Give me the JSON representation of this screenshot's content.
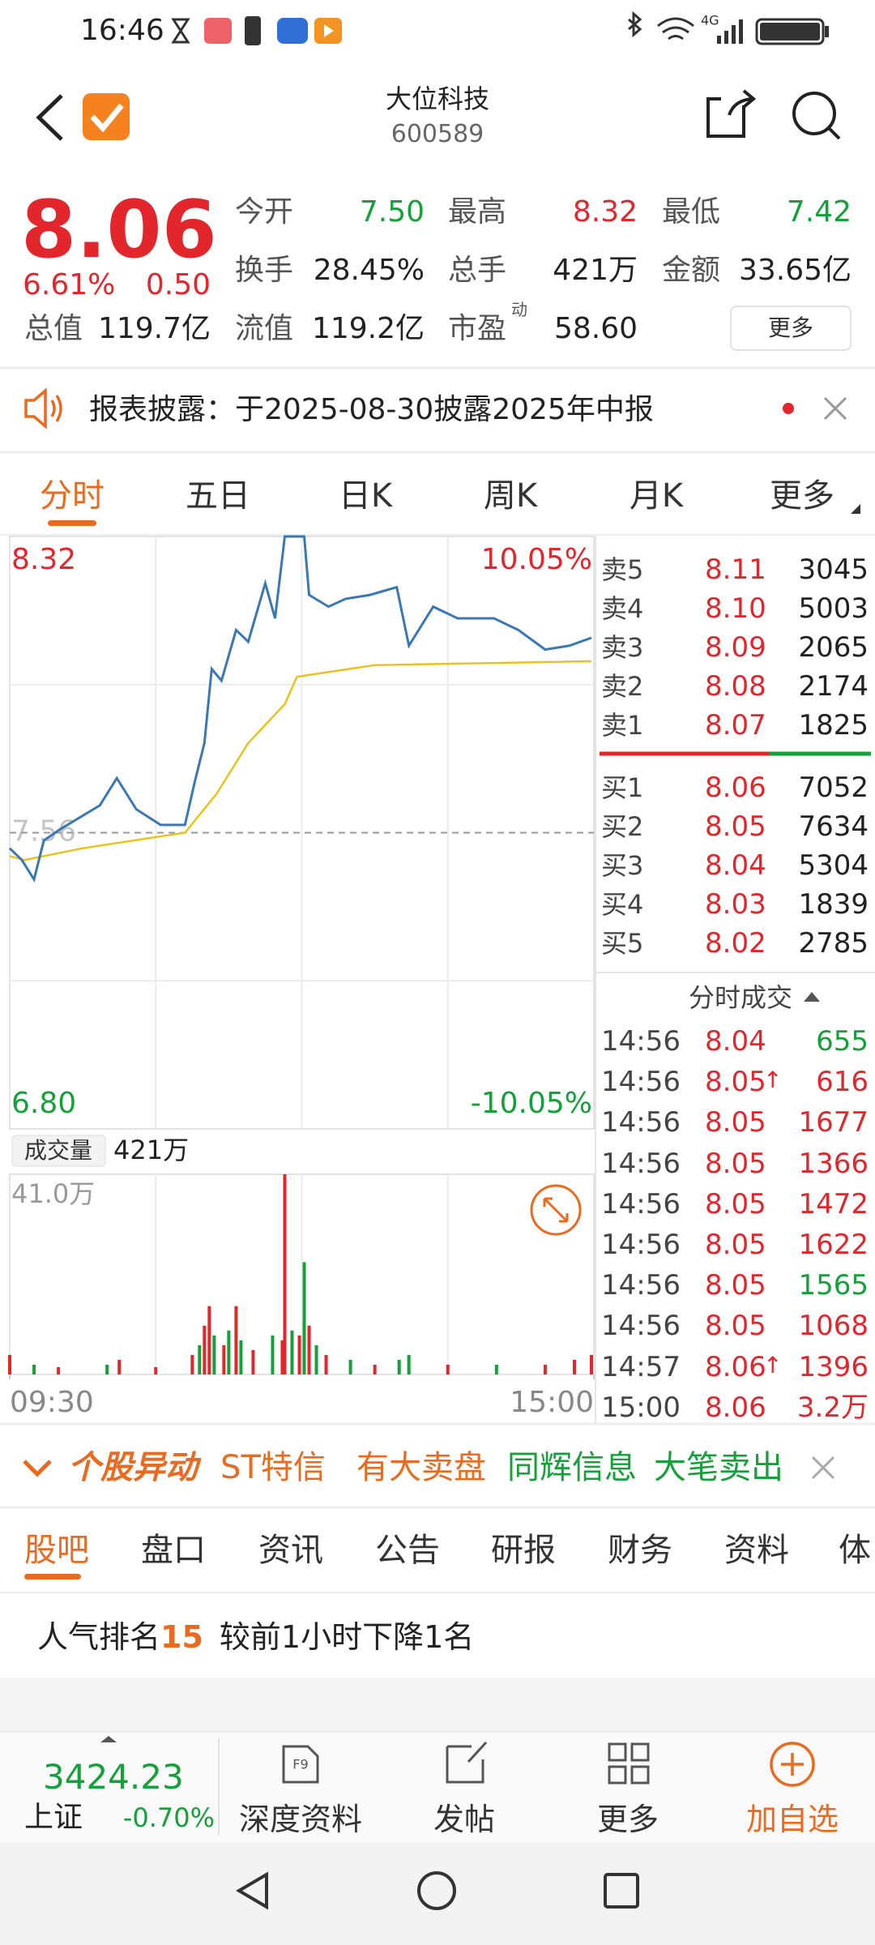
{
  "status_bar": {
    "time": "16:46",
    "network": "4G"
  },
  "header": {
    "title": "大位科技",
    "code": "600589"
  },
  "quote": {
    "price": "8.06",
    "change_pct": "6.61%",
    "change": "0.50",
    "more": "更多",
    "stats": [
      {
        "label": "今开",
        "value": "7.50",
        "color": "#16a03a"
      },
      {
        "label": "最高",
        "value": "8.32",
        "color": "#e3262c"
      },
      {
        "label": "最低",
        "value": "7.42",
        "color": "#16a03a"
      },
      {
        "label": "换手",
        "value": "28.45%",
        "color": "#222222"
      },
      {
        "label": "总手",
        "value": "421万",
        "color": "#222222"
      },
      {
        "label": "金额",
        "value": "33.65亿",
        "color": "#222222"
      },
      {
        "label": "总值",
        "value": "119.7亿",
        "color": "#222222"
      },
      {
        "label": "流值",
        "value": "119.2亿",
        "color": "#222222"
      },
      {
        "label": "市盈",
        "sup": "动",
        "value": "58.60",
        "color": "#222222"
      }
    ]
  },
  "notice": {
    "text": "报表披露：于2025-08-30披露2025年中报"
  },
  "chart_tabs": {
    "items": [
      "分时",
      "五日",
      "日K",
      "周K",
      "月K",
      "更多"
    ],
    "active": 0
  },
  "chart_data": [
    {
      "type": "line",
      "xlim": [
        0,
        240
      ],
      "ylim": [
        6.8,
        8.32
      ],
      "y2lim": [
        -10.05,
        10.05
      ],
      "yticks": [
        {
          "value": 8.32,
          "label": "8.32",
          "color": "#e3262c"
        },
        {
          "value": 7.56,
          "label": "7.56",
          "color": "#a0a0a0"
        },
        {
          "value": 6.8,
          "label": "6.80",
          "color": "#16a03a"
        }
      ],
      "y2ticks": [
        {
          "value": 10.05,
          "label": "10.05%",
          "color": "#e3262c"
        },
        {
          "value": -10.05,
          "label": "-10.05%",
          "color": "#16a03a"
        }
      ],
      "series": [
        {
          "color": "#3a78b5",
          "x": [
            0,
            5,
            10,
            14,
            21,
            29,
            37,
            44,
            52,
            62,
            72,
            76,
            80,
            83,
            87,
            93,
            98,
            105,
            109,
            113,
            121,
            123,
            131,
            138,
            148,
            159,
            164,
            174,
            184,
            199,
            209,
            220,
            230,
            239
          ],
          "values": [
            7.52,
            7.49,
            7.44,
            7.54,
            7.57,
            7.6,
            7.63,
            7.7,
            7.62,
            7.58,
            7.58,
            7.69,
            7.79,
            7.98,
            7.95,
            8.08,
            8.05,
            8.2,
            8.11,
            8.32,
            8.32,
            8.17,
            8.14,
            8.16,
            8.17,
            8.19,
            8.04,
            8.14,
            8.11,
            8.11,
            8.08,
            8.03,
            8.04,
            8.06
          ]
        },
        {
          "color": "#e9c31c",
          "x": [
            0,
            6,
            30,
            72,
            85,
            98,
            113,
            118,
            150,
            239
          ],
          "values": [
            7.5,
            7.49,
            7.52,
            7.56,
            7.66,
            7.79,
            7.89,
            7.96,
            7.99,
            8.0
          ]
        }
      ]
    },
    {
      "type": "bar",
      "title": "成交量",
      "total": "421万",
      "xlim": [
        0,
        240
      ],
      "xticks": [
        {
          "value": 0,
          "label": "09:30"
        },
        {
          "value": 240,
          "label": "15:00"
        }
      ],
      "ylim": [
        0,
        41
      ],
      "yticks": [
        {
          "value": 41,
          "label": "41.0万"
        }
      ],
      "x": [
        0,
        10,
        20,
        40,
        45,
        60,
        75,
        78,
        80,
        82,
        84,
        88,
        90,
        93,
        95,
        100,
        108,
        112,
        113,
        116,
        119,
        121,
        123,
        126,
        130,
        140,
        150,
        160,
        164,
        180,
        200,
        220,
        232,
        239
      ],
      "values": [
        4,
        2,
        1.5,
        2,
        3,
        1.5,
        4,
        6,
        10,
        14,
        8,
        6,
        9,
        14,
        7,
        5,
        8,
        7,
        41,
        9,
        8,
        23,
        10,
        6,
        4,
        3,
        2,
        3,
        4,
        2,
        2,
        2,
        3,
        4
      ],
      "colors": [
        "#e3262c",
        "#16a03a",
        "#e3262c",
        "#16a03a",
        "#e3262c",
        "#e3262c",
        "#e3262c",
        "#16a03a",
        "#e3262c",
        "#e3262c",
        "#16a03a",
        "#e3262c",
        "#16a03a",
        "#e3262c",
        "#16a03a",
        "#e3262c",
        "#16a03a",
        "#e3262c",
        "#e3262c",
        "#16a03a",
        "#e3262c",
        "#16a03a",
        "#e3262c",
        "#16a03a",
        "#e3262c",
        "#16a03a",
        "#e3262c",
        "#16a03a",
        "#16a03a",
        "#e3262c",
        "#16a03a",
        "#e3262c",
        "#e3262c",
        "#e3262c"
      ]
    }
  ],
  "order_book": {
    "asks": [
      {
        "label": "卖5",
        "price": "8.11",
        "volume": "3045"
      },
      {
        "label": "卖4",
        "price": "8.10",
        "volume": "5003"
      },
      {
        "label": "卖3",
        "price": "8.09",
        "volume": "2065"
      },
      {
        "label": "卖2",
        "price": "8.08",
        "volume": "2174"
      },
      {
        "label": "卖1",
        "price": "8.07",
        "volume": "1825"
      }
    ],
    "bids": [
      {
        "label": "买1",
        "price": "8.06",
        "volume": "7052"
      },
      {
        "label": "买2",
        "price": "8.05",
        "volume": "7634"
      },
      {
        "label": "买3",
        "price": "8.04",
        "volume": "5304"
      },
      {
        "label": "买4",
        "price": "8.03",
        "volume": "1839"
      },
      {
        "label": "买5",
        "price": "8.02",
        "volume": "2785"
      }
    ]
  },
  "trades": {
    "title": "分时成交",
    "rows": [
      {
        "time": "14:56",
        "price": "8.04",
        "volume": "655",
        "color": "#16a03a"
      },
      {
        "time": "14:56",
        "price": "8.05",
        "arrow": "↑",
        "volume": "616",
        "color": "#e3262c"
      },
      {
        "time": "14:56",
        "price": "8.05",
        "volume": "1677",
        "color": "#e3262c"
      },
      {
        "time": "14:56",
        "price": "8.05",
        "volume": "1366",
        "color": "#e3262c"
      },
      {
        "time": "14:56",
        "price": "8.05",
        "volume": "1472",
        "color": "#e3262c"
      },
      {
        "time": "14:56",
        "price": "8.05",
        "volume": "1622",
        "color": "#e3262c"
      },
      {
        "time": "14:56",
        "price": "8.05",
        "volume": "1565",
        "color": "#16a03a"
      },
      {
        "time": "14:56",
        "price": "8.05",
        "volume": "1068",
        "color": "#e3262c"
      },
      {
        "time": "14:57",
        "price": "8.06",
        "arrow": "↑",
        "volume": "1396",
        "color": "#e3262c"
      },
      {
        "time": "15:00",
        "price": "8.06",
        "volume": "3.2万",
        "color": "#e3262c"
      }
    ]
  },
  "alert_bar": {
    "title": "个股异动",
    "items": [
      {
        "text": "ST特信",
        "color": "#ea6a1f"
      },
      {
        "text": "有大卖盘",
        "color": "#ea6a1f"
      },
      {
        "text": "同辉信息",
        "color": "#16a03a"
      },
      {
        "text": "大笔卖出",
        "color": "#16a03a"
      }
    ]
  },
  "tabs": {
    "items": [
      "股吧",
      "盘口",
      "资讯",
      "公告",
      "研报",
      "财务",
      "资料",
      "体"
    ],
    "active": 0
  },
  "popularity": {
    "label": "人气排名",
    "rank": "15",
    "note": "较前1小时下降1名"
  },
  "bottom_bar": {
    "index_value": "3424.23",
    "index_name": "上证",
    "index_change": "-0.70%",
    "actions": [
      "深度资料",
      "发帖",
      "更多",
      "加自选"
    ]
  }
}
